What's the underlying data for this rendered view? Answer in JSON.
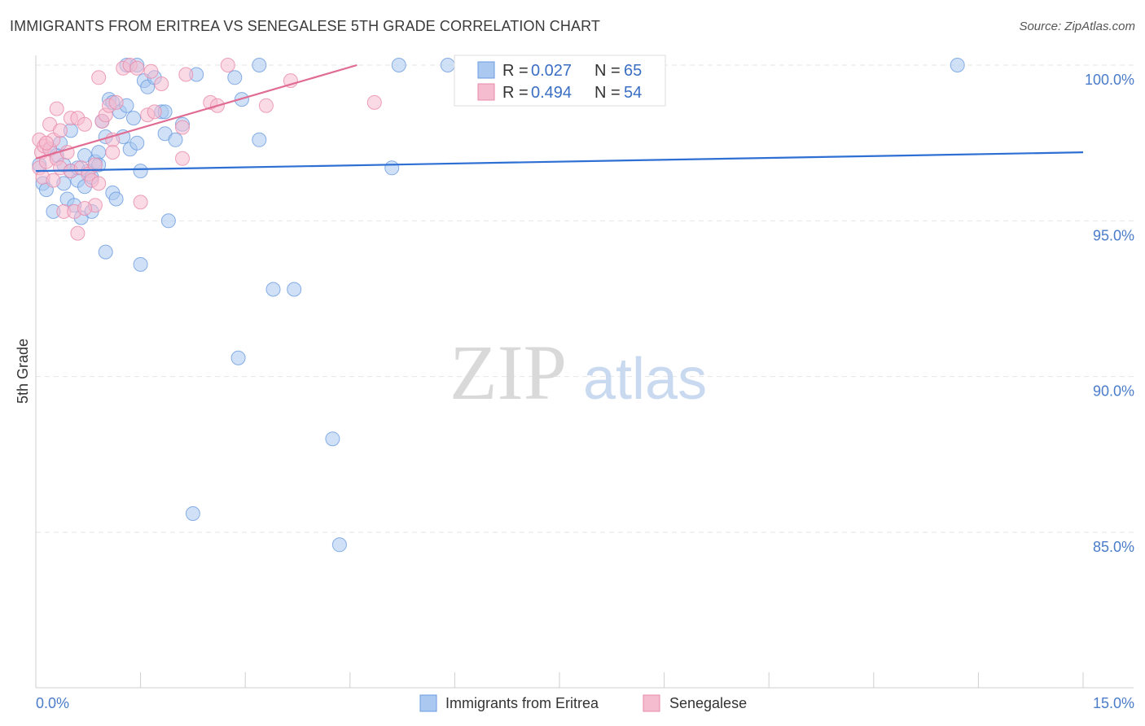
{
  "title": "IMMIGRANTS FROM ERITREA VS SENEGALESE 5TH GRADE CORRELATION CHART",
  "source": "Source: ZipAtlas.com",
  "watermark": {
    "zip": "ZIP",
    "atlas": "atlas"
  },
  "legend": {
    "rows": [
      {
        "r_label": "R = ",
        "r_value": "0.027",
        "n_label": "N = ",
        "n_value": "65",
        "color": "#aac8f0",
        "stroke": "#6b9be0"
      },
      {
        "r_label": "R = ",
        "r_value": "0.494",
        "n_label": "N = ",
        "n_value": "54",
        "color": "#f5bcd0",
        "stroke": "#e88aaa"
      }
    ]
  },
  "bottom_legend": [
    {
      "label": "Immigrants from Eritrea",
      "color": "#aac8f0",
      "stroke": "#6b9be0"
    },
    {
      "label": "Senegalese",
      "color": "#f5bcd0",
      "stroke": "#e88aaa"
    }
  ],
  "chart_data": {
    "type": "scatter",
    "xlabel": "",
    "ylabel": "5th Grade",
    "xlim": [
      0,
      15
    ],
    "ylim": [
      80.4,
      100.4
    ],
    "x_tick_labels": [
      {
        "value": 0,
        "label": "0.0%"
      },
      {
        "value": 15,
        "label": "15.0%"
      }
    ],
    "y_tick_labels": [
      {
        "value": 100,
        "label": "100.0%"
      },
      {
        "value": 95,
        "label": "95.0%"
      },
      {
        "value": 90,
        "label": "90.0%"
      },
      {
        "value": 85,
        "label": "85.0%"
      }
    ],
    "x_minor_ticks": [
      0,
      1.5,
      3,
      4.5,
      6,
      7.5,
      9,
      10.5,
      12,
      13.5,
      15
    ],
    "grid": true,
    "series": [
      {
        "name": "Immigrants from Eritrea",
        "color": "#aac8f0",
        "stroke": "#6b9be0",
        "line_color": "#2e6fd4",
        "trend": [
          [
            0,
            96.6
          ],
          [
            15,
            97.2
          ]
        ],
        "points": [
          [
            0.05,
            96.8
          ],
          [
            0.1,
            96.2
          ],
          [
            0.15,
            96.0
          ],
          [
            0.2,
            97.3
          ],
          [
            0.25,
            95.3
          ],
          [
            0.3,
            97.1
          ],
          [
            0.35,
            97.5
          ],
          [
            0.4,
            96.8
          ],
          [
            0.45,
            95.7
          ],
          [
            0.4,
            96.2
          ],
          [
            0.5,
            96.6
          ],
          [
            0.5,
            97.9
          ],
          [
            0.55,
            95.5
          ],
          [
            0.6,
            96.3
          ],
          [
            0.6,
            96.7
          ],
          [
            0.65,
            95.1
          ],
          [
            0.7,
            96.1
          ],
          [
            0.7,
            97.1
          ],
          [
            0.75,
            96.6
          ],
          [
            0.8,
            96.4
          ],
          [
            0.8,
            95.3
          ],
          [
            0.85,
            96.9
          ],
          [
            0.9,
            97.2
          ],
          [
            0.9,
            96.8
          ],
          [
            0.95,
            98.2
          ],
          [
            1.0,
            97.7
          ],
          [
            1.0,
            94.0
          ],
          [
            1.05,
            98.9
          ],
          [
            1.1,
            95.9
          ],
          [
            1.1,
            98.8
          ],
          [
            1.15,
            95.7
          ],
          [
            1.2,
            98.5
          ],
          [
            1.25,
            97.7
          ],
          [
            1.3,
            98.7
          ],
          [
            1.3,
            100.0
          ],
          [
            1.35,
            97.3
          ],
          [
            1.4,
            98.3
          ],
          [
            1.45,
            97.5
          ],
          [
            1.45,
            100.0
          ],
          [
            1.5,
            96.6
          ],
          [
            1.5,
            93.6
          ],
          [
            1.55,
            99.5
          ],
          [
            1.6,
            99.3
          ],
          [
            1.7,
            99.6
          ],
          [
            1.8,
            98.5
          ],
          [
            1.85,
            98.5
          ],
          [
            1.85,
            97.8
          ],
          [
            1.9,
            95.0
          ],
          [
            2.0,
            97.6
          ],
          [
            2.1,
            98.1
          ],
          [
            2.25,
            85.6
          ],
          [
            2.3,
            99.7
          ],
          [
            2.85,
            99.6
          ],
          [
            2.9,
            90.6
          ],
          [
            2.95,
            98.9
          ],
          [
            3.2,
            97.6
          ],
          [
            3.2,
            100.0
          ],
          [
            3.4,
            92.8
          ],
          [
            3.7,
            92.8
          ],
          [
            4.25,
            88.0
          ],
          [
            4.35,
            84.6
          ],
          [
            5.1,
            96.7
          ],
          [
            5.2,
            100.0
          ],
          [
            5.9,
            100.0
          ],
          [
            13.2,
            100.0
          ]
        ]
      },
      {
        "name": "Senegalese",
        "color": "#f5bcd0",
        "stroke": "#e88aaa",
        "line_color": "#e06b93",
        "trend": [
          [
            0,
            97.0
          ],
          [
            4.6,
            100.0
          ]
        ],
        "points": [
          [
            0.05,
            97.6
          ],
          [
            0.05,
            96.7
          ],
          [
            0.08,
            97.2
          ],
          [
            0.1,
            96.4
          ],
          [
            0.12,
            97.4
          ],
          [
            0.15,
            96.9
          ],
          [
            0.2,
            97.3
          ],
          [
            0.2,
            98.1
          ],
          [
            0.25,
            97.6
          ],
          [
            0.3,
            98.6
          ],
          [
            0.3,
            97.0
          ],
          [
            0.35,
            96.7
          ],
          [
            0.35,
            97.9
          ],
          [
            0.4,
            95.3
          ],
          [
            0.45,
            97.2
          ],
          [
            0.5,
            96.6
          ],
          [
            0.5,
            98.3
          ],
          [
            0.55,
            95.3
          ],
          [
            0.6,
            94.6
          ],
          [
            0.6,
            98.3
          ],
          [
            0.65,
            96.7
          ],
          [
            0.7,
            98.1
          ],
          [
            0.75,
            96.5
          ],
          [
            0.8,
            96.3
          ],
          [
            0.85,
            96.8
          ],
          [
            0.85,
            95.5
          ],
          [
            0.9,
            96.2
          ],
          [
            0.9,
            99.6
          ],
          [
            0.95,
            98.2
          ],
          [
            1.0,
            98.4
          ],
          [
            1.05,
            98.7
          ],
          [
            1.1,
            97.6
          ],
          [
            1.1,
            97.2
          ],
          [
            1.15,
            98.8
          ],
          [
            1.25,
            99.9
          ],
          [
            1.35,
            100.0
          ],
          [
            1.45,
            99.9
          ],
          [
            1.5,
            95.6
          ],
          [
            1.6,
            98.4
          ],
          [
            1.65,
            99.8
          ],
          [
            1.7,
            98.5
          ],
          [
            1.8,
            99.4
          ],
          [
            2.1,
            98.0
          ],
          [
            2.1,
            97.0
          ],
          [
            2.15,
            99.7
          ],
          [
            2.5,
            98.8
          ],
          [
            2.6,
            98.7
          ],
          [
            2.75,
            100.0
          ],
          [
            3.3,
            98.7
          ],
          [
            3.65,
            99.5
          ],
          [
            4.85,
            98.8
          ],
          [
            0.15,
            97.5
          ],
          [
            0.25,
            96.3
          ],
          [
            0.7,
            95.4
          ]
        ]
      }
    ]
  }
}
